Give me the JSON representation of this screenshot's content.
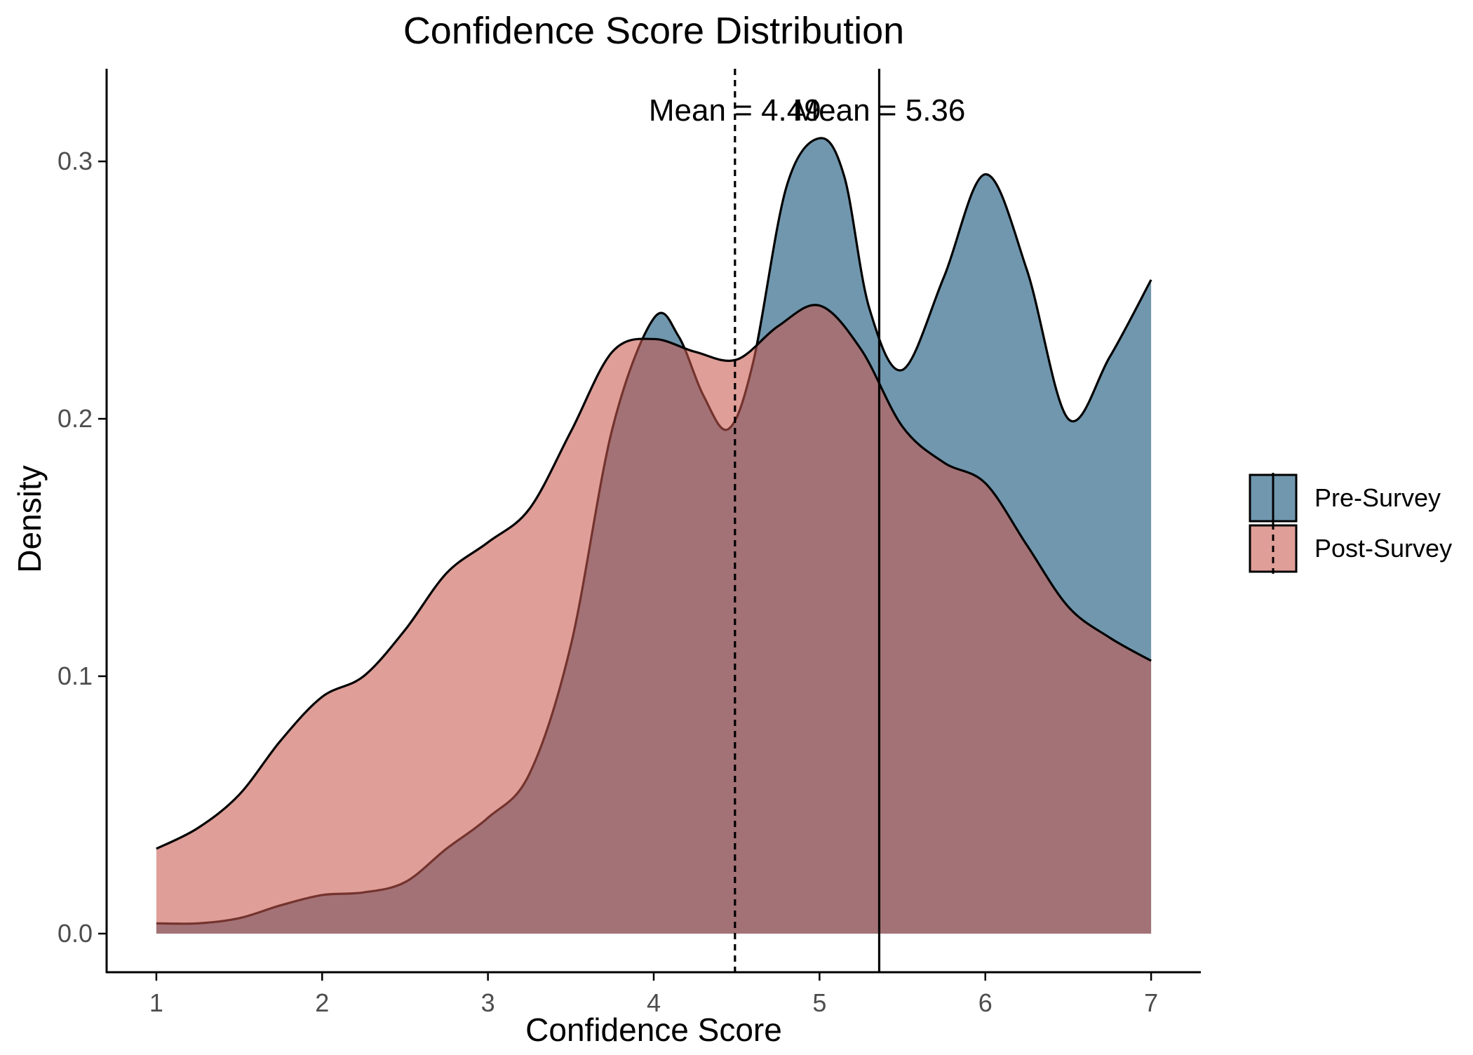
{
  "chart_data": {
    "type": "area",
    "title": "Confidence Score Distribution",
    "xlabel": "Confidence Score",
    "ylabel": "Density",
    "xlim": [
      0.7,
      7.3
    ],
    "ylim": [
      -0.015,
      0.336
    ],
    "x_ticks": [
      1,
      2,
      3,
      4,
      5,
      6,
      7
    ],
    "y_ticks": [
      0.0,
      0.1,
      0.2,
      0.3
    ],
    "x_tick_labels": [
      "1",
      "2",
      "3",
      "4",
      "5",
      "6",
      "7"
    ],
    "y_tick_labels": [
      "0.0",
      "0.1",
      "0.2",
      "0.3"
    ],
    "grid": false,
    "legend_position": "right",
    "series": [
      {
        "name": "Pre-Survey",
        "color": "#1F5D80",
        "opacity": 0.64,
        "mean": 5.36,
        "mean_line": "solid",
        "mean_label": "Mean = 5.36",
        "x": [
          1.0,
          1.25,
          1.5,
          1.75,
          2.0,
          2.25,
          2.5,
          2.75,
          3.0,
          3.25,
          3.5,
          3.75,
          4.0,
          4.15,
          4.3,
          4.45,
          4.6,
          4.8,
          5.0,
          5.15,
          5.3,
          5.5,
          5.75,
          6.0,
          6.25,
          6.5,
          6.75,
          7.0
        ],
        "y": [
          0.004,
          0.004,
          0.006,
          0.011,
          0.015,
          0.016,
          0.02,
          0.033,
          0.045,
          0.062,
          0.112,
          0.196,
          0.239,
          0.232,
          0.209,
          0.196,
          0.222,
          0.29,
          0.309,
          0.294,
          0.243,
          0.219,
          0.255,
          0.295,
          0.258,
          0.2,
          0.224,
          0.254
        ]
      },
      {
        "name": "Post-Survey",
        "color": "#C8584D",
        "opacity": 0.58,
        "mean": 4.49,
        "mean_line": "dashed",
        "mean_label": "Mean = 4.49",
        "x": [
          1.0,
          1.25,
          1.5,
          1.75,
          2.0,
          2.25,
          2.5,
          2.75,
          3.0,
          3.25,
          3.5,
          3.75,
          4.0,
          4.25,
          4.5,
          4.75,
          5.0,
          5.25,
          5.5,
          5.75,
          6.0,
          6.25,
          6.5,
          6.75,
          7.0
        ],
        "y": [
          0.033,
          0.041,
          0.054,
          0.075,
          0.092,
          0.1,
          0.118,
          0.14,
          0.152,
          0.165,
          0.195,
          0.226,
          0.231,
          0.226,
          0.223,
          0.236,
          0.244,
          0.227,
          0.197,
          0.183,
          0.175,
          0.151,
          0.127,
          0.115,
          0.106
        ]
      }
    ]
  }
}
